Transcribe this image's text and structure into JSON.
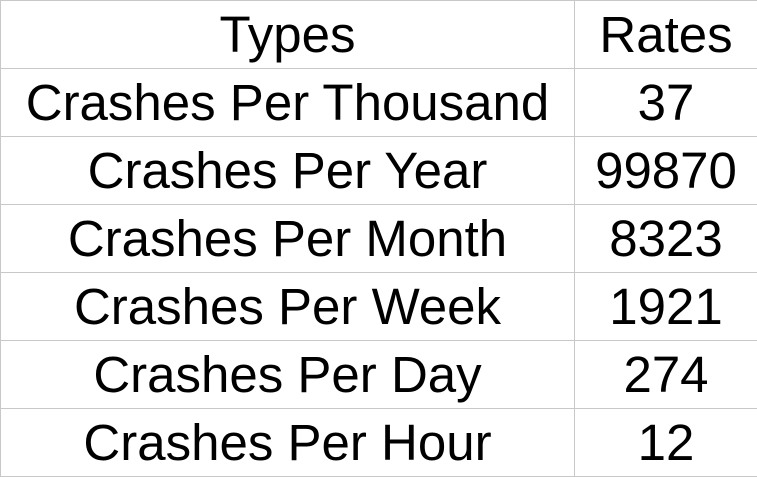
{
  "table": {
    "headers": {
      "types": "Types",
      "rates": "Rates"
    },
    "rows": [
      {
        "type": "Crashes Per Thousand",
        "rate": "37"
      },
      {
        "type": "Crashes Per Year",
        "rate": "99870"
      },
      {
        "type": "Crashes Per Month",
        "rate": "8323"
      },
      {
        "type": "Crashes Per Week",
        "rate": "1921"
      },
      {
        "type": "Crashes Per Day",
        "rate": "274"
      },
      {
        "type": "Crashes Per Hour",
        "rate": "12"
      }
    ]
  },
  "colors": {
    "grid": "#c8c8c8",
    "text": "#000000",
    "background": "#ffffff"
  }
}
